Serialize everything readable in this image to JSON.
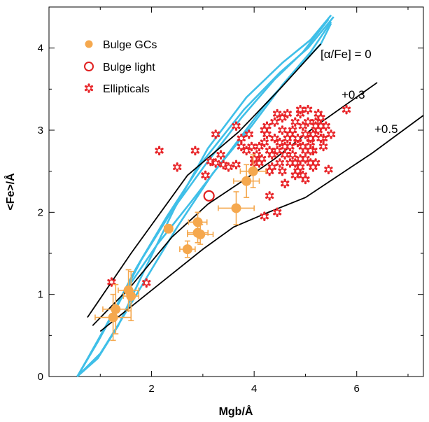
{
  "chart_data": {
    "type": "scatter",
    "title": "",
    "xlabel": "Mgb/Å",
    "ylabel": "<Fe>/Å",
    "xlim": [
      0,
      7.3
    ],
    "ylim": [
      0,
      4.5
    ],
    "xticks": [
      2,
      4,
      6
    ],
    "yticks": [
      0,
      1,
      2,
      3,
      4
    ],
    "legend_position": "top-left",
    "colors": {
      "gc": "#f5a84e",
      "bulge_light": "#e02020",
      "ellipticals": "#e8262a",
      "ssp_grid": "#3fbfe8",
      "model": "#000000"
    },
    "legend": [
      {
        "label": "Bulge GCs",
        "marker": "filled-circle"
      },
      {
        "label": "Bulge light",
        "marker": "open-circle"
      },
      {
        "label": "Ellipticals",
        "marker": "star"
      }
    ],
    "annotations": [
      "[α/Fe] = 0",
      "+0.3",
      "+0.5"
    ],
    "model_lines": [
      {
        "name": "[α/Fe] = 0",
        "x": [
          0.75,
          1.6,
          2.7,
          3.7,
          4.5,
          5.3
        ],
        "y": [
          0.72,
          1.5,
          2.45,
          2.98,
          3.5,
          4.05
        ]
      },
      {
        "name": "+0.3",
        "x": [
          0.85,
          1.6,
          2.4,
          3.1,
          3.7,
          4.4,
          5.2,
          6.4
        ],
        "y": [
          0.62,
          1.1,
          1.7,
          2.1,
          2.35,
          2.65,
          3.05,
          3.58
        ]
      },
      {
        "name": "+0.5",
        "x": [
          1.0,
          1.7,
          2.4,
          3.0,
          3.6,
          4.2,
          5.0,
          6.3,
          7.3
        ],
        "y": [
          0.55,
          0.9,
          1.25,
          1.55,
          1.82,
          1.98,
          2.18,
          2.72,
          3.18
        ]
      }
    ],
    "ssp_grid_lines": [
      {
        "x": [
          0.55,
          0.85,
          1.2,
          1.7,
          2.3,
          3.0,
          3.8,
          4.5,
          5.05,
          5.55
        ],
        "y": [
          0.0,
          0.32,
          0.72,
          1.32,
          1.95,
          2.62,
          3.25,
          3.7,
          4.0,
          4.38
        ]
      },
      {
        "x": [
          0.55,
          0.95,
          1.35,
          1.85,
          2.45,
          3.1,
          3.85,
          4.55,
          5.1,
          5.5
        ],
        "y": [
          0.0,
          0.22,
          0.62,
          1.28,
          2.05,
          2.78,
          3.4,
          3.82,
          4.1,
          4.4
        ]
      },
      {
        "x": [
          0.6,
          0.95,
          1.3,
          1.8,
          2.4,
          3.05,
          3.75,
          4.4,
          4.95,
          5.45
        ],
        "y": [
          0.05,
          0.42,
          0.82,
          1.42,
          2.02,
          2.58,
          3.15,
          3.62,
          3.95,
          4.35
        ]
      },
      {
        "x": [
          0.55,
          1.0,
          1.4,
          1.9,
          2.5,
          3.2,
          3.95,
          4.55,
          5.1,
          5.5
        ],
        "y": [
          0.0,
          0.28,
          0.68,
          1.2,
          1.82,
          2.48,
          3.05,
          3.55,
          3.95,
          4.32
        ]
      },
      {
        "x": [
          0.6,
          1.05,
          1.5,
          2.1,
          2.8,
          3.5,
          4.2,
          4.85,
          5.3,
          5.5
        ],
        "y": [
          0.05,
          0.55,
          1.05,
          1.6,
          2.15,
          2.72,
          3.3,
          3.75,
          4.05,
          4.3
        ]
      }
    ],
    "bulge_gcs": [
      {
        "x": 1.25,
        "y": 0.72,
        "xerr": 0.35,
        "yerr": 0.28
      },
      {
        "x": 1.3,
        "y": 0.82,
        "xerr": 0.25,
        "yerr": 0.3
      },
      {
        "x": 1.6,
        "y": 0.98,
        "xerr": 0.15,
        "yerr": 0.3
      },
      {
        "x": 1.55,
        "y": 1.05,
        "xerr": 0.2,
        "yerr": 0.25
      },
      {
        "x": 2.33,
        "y": 1.8,
        "xerr": 0.08,
        "yerr": 0.05
      },
      {
        "x": 2.7,
        "y": 1.55,
        "xerr": 0.15,
        "yerr": 0.1
      },
      {
        "x": 2.9,
        "y": 1.88,
        "xerr": 0.18,
        "yerr": 0.12
      },
      {
        "x": 2.9,
        "y": 1.75,
        "xerr": 0.2,
        "yerr": 0.12
      },
      {
        "x": 2.95,
        "y": 1.73,
        "xerr": 0.25,
        "yerr": 0.12
      },
      {
        "x": 3.65,
        "y": 2.05,
        "xerr": 0.35,
        "yerr": 0.2
      },
      {
        "x": 3.85,
        "y": 2.38,
        "xerr": 0.25,
        "yerr": 0.2
      },
      {
        "x": 3.98,
        "y": 2.5,
        "xerr": 0.25,
        "yerr": 0.2
      }
    ],
    "bulge_light": [
      {
        "x": 3.12,
        "y": 2.2
      }
    ],
    "ellipticals_x": [
      1.22,
      1.9,
      2.5,
      2.85,
      3.05,
      3.15,
      3.25,
      3.4,
      3.5,
      3.65,
      3.75,
      3.9,
      4.0,
      4.05,
      4.1,
      4.2,
      4.25,
      4.35,
      4.4,
      4.45,
      4.5,
      4.55,
      4.6,
      4.65,
      4.7,
      4.75,
      4.8,
      4.85,
      4.9,
      4.95,
      5.0,
      5.05,
      5.1,
      5.15,
      5.2,
      5.25,
      5.3,
      5.35,
      5.4,
      5.5,
      5.8,
      4.3,
      4.5,
      4.6,
      4.7,
      4.85,
      5.0,
      5.1,
      5.2,
      5.3,
      4.2,
      4.4,
      4.55,
      4.75,
      4.9,
      5.05,
      5.15,
      5.25,
      4.1,
      4.25,
      4.45,
      4.65,
      4.8,
      4.95,
      5.1,
      5.2,
      3.85,
      3.95,
      4.15,
      4.35,
      4.55,
      4.7,
      4.85,
      5.0,
      5.35,
      4.6,
      4.8,
      4.9,
      5.0,
      5.1,
      5.45,
      4.3,
      4.6,
      4.95,
      5.15,
      2.15,
      3.35,
      3.65,
      3.05,
      4.3,
      4.45,
      4.0,
      3.25,
      3.75,
      4.2,
      4.9,
      5.3
    ],
    "ellipticals_y": [
      1.15,
      1.14,
      2.55,
      2.75,
      2.45,
      2.62,
      2.6,
      2.58,
      2.55,
      3.05,
      2.9,
      2.95,
      2.6,
      2.7,
      2.6,
      2.85,
      3.05,
      2.7,
      2.9,
      3.2,
      2.6,
      3.0,
      2.8,
      3.2,
      2.95,
      2.7,
      3.1,
      2.85,
      2.65,
      3.05,
      2.95,
      3.25,
      2.85,
      2.75,
      3.1,
      3.0,
      3.15,
      2.9,
      3.05,
      2.95,
      3.25,
      2.75,
      2.85,
      2.7,
      2.8,
      2.9,
      2.75,
      2.9,
      3.05,
      2.9,
      3.0,
      3.1,
      3.15,
      3.0,
      3.2,
      3.1,
      2.95,
      3.2,
      2.8,
      2.95,
      2.75,
      2.9,
      2.6,
      2.8,
      2.75,
      2.6,
      2.75,
      2.8,
      2.65,
      2.55,
      2.5,
      2.6,
      2.5,
      2.65,
      2.8,
      2.35,
      2.45,
      2.55,
      2.4,
      2.6,
      2.52,
      2.5,
      2.35,
      2.45,
      2.55,
      2.75,
      2.7,
      2.58,
      2.45,
      2.2,
      2.0,
      2.65,
      2.95,
      2.8,
      1.95,
      3.25,
      3.05
    ]
  }
}
